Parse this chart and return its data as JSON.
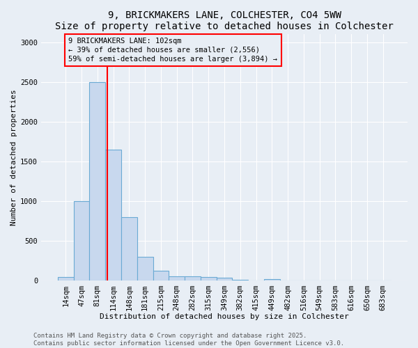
{
  "title": "9, BRICKMAKERS LANE, COLCHESTER, CO4 5WW",
  "subtitle": "Size of property relative to detached houses in Colchester",
  "xlabel": "Distribution of detached houses by size in Colchester",
  "ylabel": "Number of detached properties",
  "bar_labels": [
    "14sqm",
    "47sqm",
    "81sqm",
    "114sqm",
    "148sqm",
    "181sqm",
    "215sqm",
    "248sqm",
    "282sqm",
    "315sqm",
    "349sqm",
    "382sqm",
    "415sqm",
    "449sqm",
    "482sqm",
    "516sqm",
    "549sqm",
    "583sqm",
    "616sqm",
    "650sqm",
    "683sqm"
  ],
  "bar_values": [
    50,
    1005,
    2500,
    1650,
    800,
    300,
    130,
    60,
    55,
    45,
    35,
    10,
    0,
    20,
    0,
    0,
    0,
    0,
    0,
    0,
    0
  ],
  "bar_color": "#c8d8ee",
  "bar_edge_color": "#6aaad4",
  "ylim": [
    0,
    3100
  ],
  "yticks": [
    0,
    500,
    1000,
    1500,
    2000,
    2500,
    3000
  ],
  "red_line_x": 2.64,
  "annotation_box_text": "9 BRICKMAKERS LANE: 102sqm\n← 39% of detached houses are smaller (2,556)\n59% of semi-detached houses are larger (3,894) →",
  "footer_text": "Contains HM Land Registry data © Crown copyright and database right 2025.\nContains public sector information licensed under the Open Government Licence v3.0.",
  "background_color": "#e8eef5",
  "grid_color": "#ffffff",
  "title_fontsize": 10,
  "label_fontsize": 8,
  "tick_fontsize": 7.5,
  "footer_fontsize": 6.5
}
